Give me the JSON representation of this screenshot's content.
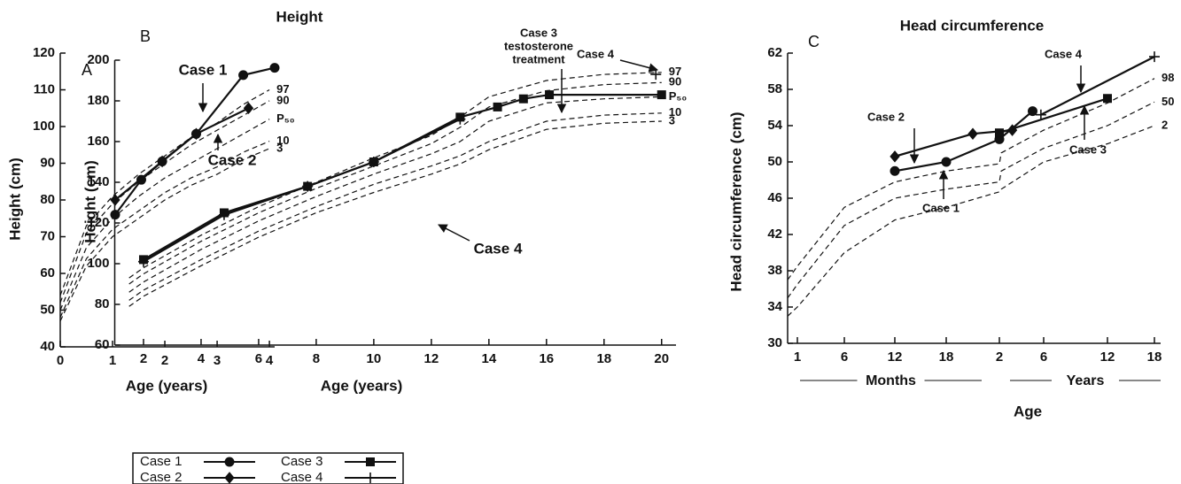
{
  "figure_title": "Height",
  "legend_corner": "bottom-left",
  "chart_data": [
    {
      "type": "line",
      "label": "A",
      "x_label": "Age (years)",
      "y_label": "Height (cm)",
      "xlim": [
        0,
        4.1
      ],
      "ylim": [
        40,
        120
      ],
      "xticks": [
        0,
        1,
        2,
        3,
        4
      ],
      "yticks": [
        40,
        50,
        60,
        70,
        80,
        90,
        100,
        110,
        120
      ],
      "series": [
        {
          "name": "Case 1",
          "marker": "circle",
          "color": "#111",
          "x": [
            1.05,
            1.55,
            1.95,
            2.6,
            3.5,
            4.1
          ],
          "values": [
            76,
            85.5,
            90.5,
            98,
            114,
            116
          ]
        },
        {
          "name": "Case 2",
          "marker": "diamond",
          "color": "#111",
          "x": [
            1.05,
            1.95,
            2.6,
            3.6
          ],
          "values": [
            80,
            90.5,
            98,
            105
          ]
        }
      ],
      "percentiles": [
        {
          "name": "97",
          "x": [
            0,
            0.5,
            1,
            1.5,
            2,
            2.5,
            3,
            3.5,
            4
          ],
          "values": [
            54,
            73,
            81,
            87,
            92,
            97,
            101,
            106,
            110
          ]
        },
        {
          "name": "90",
          "x": [
            0,
            0.5,
            1,
            1.5,
            2,
            2.5,
            3,
            3.5,
            4
          ],
          "values": [
            52,
            71,
            79,
            85,
            90,
            95,
            99,
            103,
            107
          ]
        },
        {
          "name": "P₅₀",
          "x": [
            0,
            0.5,
            1,
            1.5,
            2,
            2.5,
            3,
            3.5,
            4
          ],
          "values": [
            50,
            67,
            75,
            81,
            86,
            90,
            94,
            98,
            102
          ]
        },
        {
          "name": "10",
          "x": [
            0,
            0.5,
            1,
            1.5,
            2,
            2.5,
            3,
            3.5,
            4
          ],
          "values": [
            48,
            64,
            72,
            77,
            82,
            86,
            89,
            93,
            96
          ]
        },
        {
          "name": "3",
          "x": [
            0,
            0.5,
            1,
            1.5,
            2,
            2.5,
            3,
            3.5,
            4
          ],
          "values": [
            47,
            62,
            70,
            75,
            80,
            84,
            87,
            91,
            94
          ]
        }
      ],
      "annotations": [
        "Case 1",
        "Case 2"
      ]
    },
    {
      "type": "line",
      "label": "B",
      "x_label": "Age (years)",
      "y_label": "Height (cm)",
      "xlim": [
        1,
        20.5
      ],
      "ylim": [
        60,
        200
      ],
      "xticks": [
        2,
        4,
        6,
        8,
        10,
        12,
        14,
        16,
        18,
        20
      ],
      "yticks": [
        60,
        80,
        100,
        120,
        140,
        160,
        180,
        200
      ],
      "series": [
        {
          "name": "Case 3",
          "marker": "square",
          "color": "#111",
          "x": [
            2,
            4.8,
            7.7,
            10,
            13,
            14.3,
            15.2,
            16.1,
            20
          ],
          "values": [
            102,
            125,
            138,
            150,
            172,
            177,
            181,
            183,
            183
          ]
        },
        {
          "name": "Case 4",
          "marker": "plus",
          "color": "#111",
          "x": [
            2,
            4.8,
            7.7,
            10,
            13,
            16,
            19.8
          ],
          "values": [
            101,
            124,
            138,
            150,
            171,
            null,
            193
          ]
        }
      ],
      "percentiles": [
        {
          "name": "97",
          "x": [
            1.5,
            2,
            4,
            6,
            8,
            10,
            12,
            13,
            14,
            16,
            18,
            20
          ],
          "values": [
            93,
            98,
            114,
            128,
            140,
            152,
            163,
            172,
            182,
            190,
            193,
            194
          ]
        },
        {
          "name": "90",
          "x": [
            1.5,
            2,
            4,
            6,
            8,
            10,
            12,
            13,
            14,
            16,
            18,
            20
          ],
          "values": [
            90,
            95,
            111,
            125,
            137,
            148,
            159,
            167,
            177,
            185,
            188,
            189
          ]
        },
        {
          "name": "P₅₀",
          "x": [
            1.5,
            2,
            4,
            6,
            8,
            10,
            12,
            13,
            14,
            16,
            18,
            20
          ],
          "values": [
            86,
            91,
            107,
            121,
            133,
            144,
            154,
            160,
            170,
            179,
            181,
            182
          ]
        },
        {
          "name": "10",
          "x": [
            1.5,
            2,
            4,
            6,
            8,
            10,
            12,
            13,
            14,
            16,
            18,
            20
          ],
          "values": [
            82,
            87,
            102,
            116,
            128,
            139,
            148,
            153,
            160,
            170,
            173,
            174
          ]
        },
        {
          "name": "3",
          "x": [
            1.5,
            2,
            4,
            6,
            8,
            10,
            12,
            13,
            14,
            16,
            18,
            20
          ],
          "values": [
            79,
            84,
            99,
            113,
            125,
            135,
            144,
            149,
            156,
            166,
            169,
            170
          ]
        }
      ],
      "annotations": [
        "Case 3",
        "testosterone",
        "treatment",
        "Case 4",
        "Case 4"
      ]
    },
    {
      "type": "line",
      "label": "C",
      "title": "Head circumference",
      "x_label": "Age",
      "y_label": "Head circumference (cm)",
      "x_groups": [
        "Months",
        "Years"
      ],
      "xlim": [
        0,
        216
      ],
      "ylim": [
        30,
        62
      ],
      "xticks": [
        1,
        6,
        12,
        18,
        {
          "value": 24,
          "label": "2"
        },
        {
          "value": 72,
          "label": "6"
        },
        {
          "value": 144,
          "label": "12"
        },
        {
          "value": 216,
          "label": "18"
        }
      ],
      "yticks": [
        30,
        34,
        38,
        42,
        46,
        50,
        54,
        58,
        62
      ],
      "series": [
        {
          "marker": "circle",
          "color": "#111",
          "x": [
            12,
            18,
            24,
            60
          ],
          "values": [
            49,
            50,
            52.5,
            55.6
          ]
        },
        {
          "marker": "diamond",
          "color": "#111",
          "x": [
            12,
            21,
            38
          ],
          "values": [
            50.6,
            53.1,
            53.5
          ]
        },
        {
          "marker": "square",
          "color": "#111",
          "x": [
            24,
            144
          ],
          "values": [
            53.2,
            57
          ]
        },
        {
          "marker": "plus",
          "color": "#111",
          "x": [
            69,
            216
          ],
          "values": [
            55.2,
            61.6
          ]
        }
      ],
      "percentiles": [
        {
          "name": "98",
          "x": [
            0,
            1,
            6,
            12,
            18,
            24,
            26,
            72,
            144,
            216
          ],
          "values": [
            37,
            38.5,
            45,
            47.8,
            49,
            49.8,
            51,
            53.5,
            56.5,
            59.2
          ]
        },
        {
          "name": "50",
          "x": [
            0,
            1,
            6,
            12,
            18,
            24,
            26,
            72,
            144,
            216
          ],
          "values": [
            35,
            36.5,
            43,
            46,
            47,
            47.8,
            49,
            51.5,
            54,
            56.6
          ]
        },
        {
          "name": "2",
          "x": [
            0,
            1,
            6,
            12,
            18,
            24,
            26,
            72,
            144,
            216
          ],
          "values": [
            33,
            34,
            40,
            43.6,
            45,
            46.7,
            47,
            50,
            52,
            54
          ]
        }
      ],
      "annotations": [
        "Case 2",
        "Case 1",
        "Case 3",
        "Case 4"
      ]
    }
  ]
}
